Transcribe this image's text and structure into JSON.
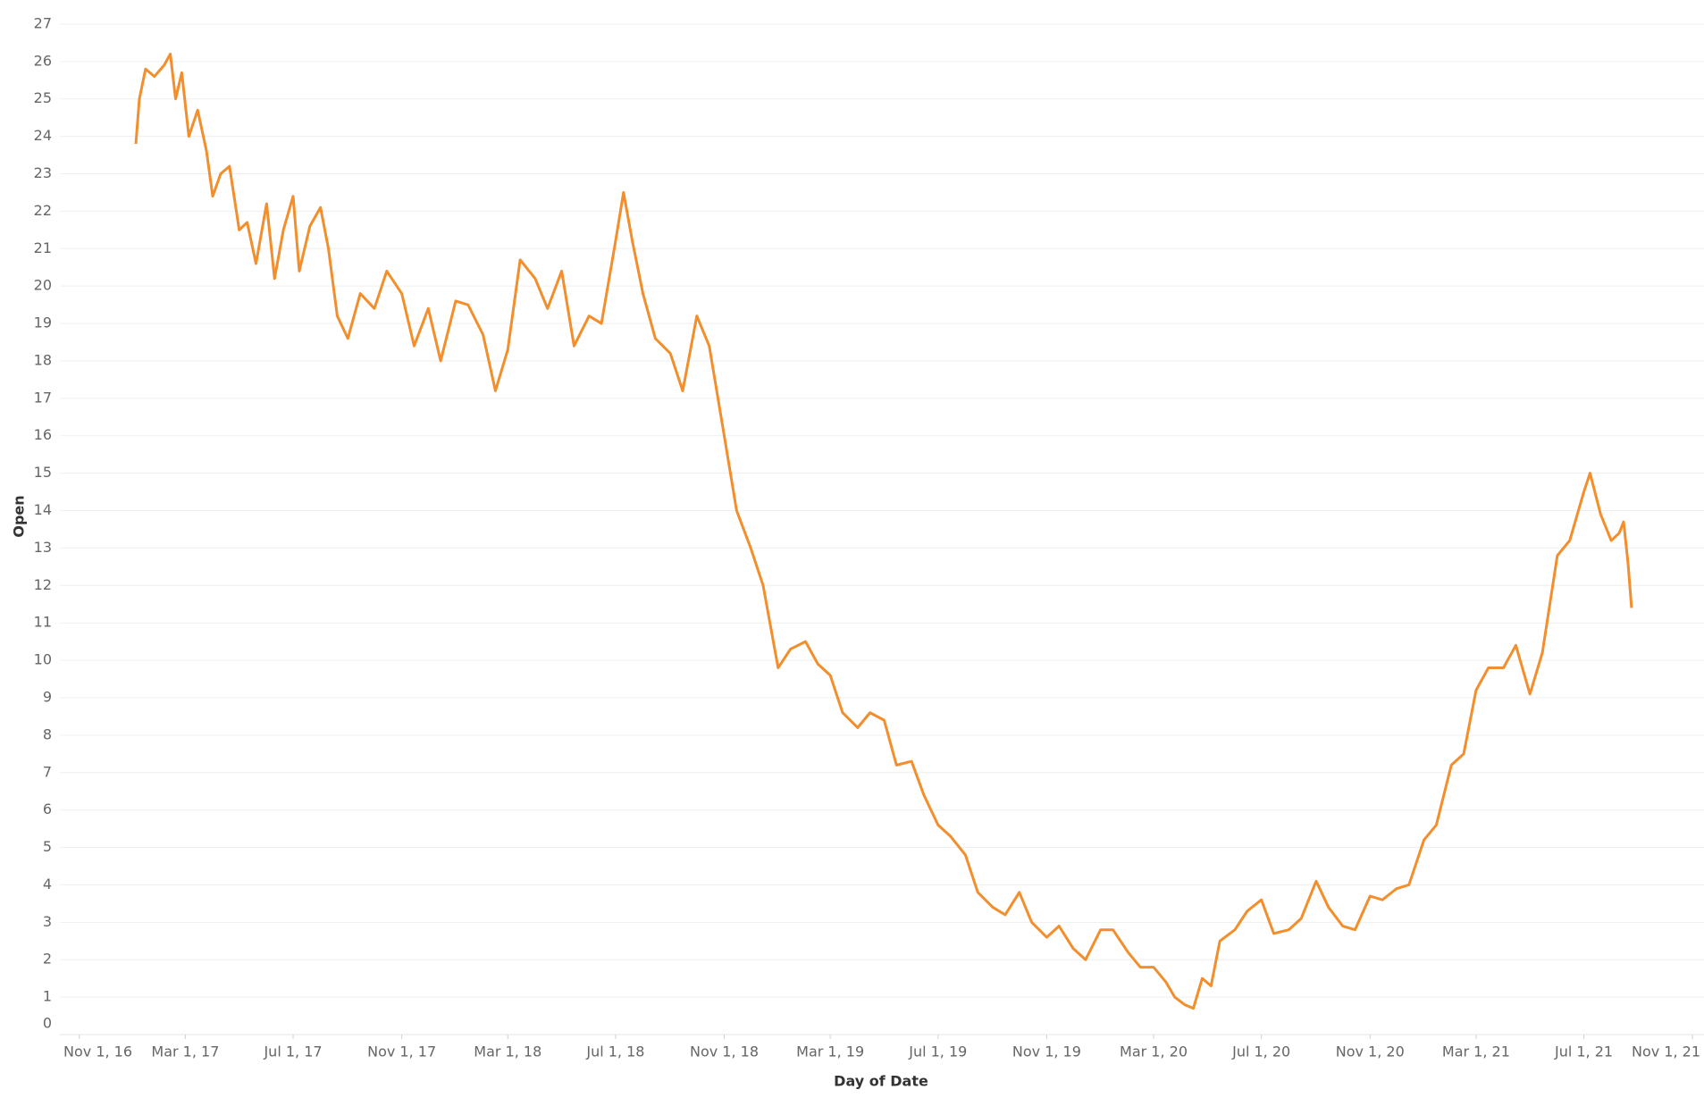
{
  "chart_data": {
    "type": "line",
    "x_label": "Day of Date",
    "y_label": "Open",
    "x": [
      "2017-01-04",
      "2017-01-08",
      "2017-01-15",
      "2017-01-25",
      "2017-02-05",
      "2017-02-12",
      "2017-02-18",
      "2017-02-25",
      "2017-03-05",
      "2017-03-15",
      "2017-03-25",
      "2017-04-01",
      "2017-04-10",
      "2017-04-20",
      "2017-05-01",
      "2017-05-10",
      "2017-05-20",
      "2017-06-01",
      "2017-06-10",
      "2017-06-20",
      "2017-07-01",
      "2017-07-08",
      "2017-07-20",
      "2017-08-01",
      "2017-08-10",
      "2017-08-20",
      "2017-09-01",
      "2017-09-15",
      "2017-10-01",
      "2017-10-15",
      "2017-11-01",
      "2017-11-15",
      "2017-12-01",
      "2017-12-15",
      "2018-01-01",
      "2018-01-15",
      "2018-02-01",
      "2018-02-15",
      "2018-03-01",
      "2018-03-15",
      "2018-04-01",
      "2018-04-15",
      "2018-05-01",
      "2018-05-15",
      "2018-06-01",
      "2018-06-15",
      "2018-07-01",
      "2018-07-10",
      "2018-07-20",
      "2018-08-01",
      "2018-08-15",
      "2018-09-01",
      "2018-09-15",
      "2018-10-01",
      "2018-10-15",
      "2018-11-01",
      "2018-11-15",
      "2018-12-01",
      "2018-12-15",
      "2019-01-01",
      "2019-01-15",
      "2019-02-01",
      "2019-02-15",
      "2019-03-01",
      "2019-03-15",
      "2019-04-01",
      "2019-04-15",
      "2019-05-01",
      "2019-05-15",
      "2019-06-01",
      "2019-06-15",
      "2019-07-01",
      "2019-07-15",
      "2019-08-01",
      "2019-08-15",
      "2019-09-01",
      "2019-09-15",
      "2019-10-01",
      "2019-10-15",
      "2019-11-01",
      "2019-11-15",
      "2019-12-01",
      "2019-12-15",
      "2020-01-01",
      "2020-01-15",
      "2020-02-01",
      "2020-02-15",
      "2020-03-01",
      "2020-03-15",
      "2020-03-25",
      "2020-04-05",
      "2020-04-15",
      "2020-04-25",
      "2020-05-05",
      "2020-05-15",
      "2020-06-01",
      "2020-06-15",
      "2020-07-01",
      "2020-07-15",
      "2020-08-01",
      "2020-08-15",
      "2020-09-01",
      "2020-09-15",
      "2020-10-01",
      "2020-10-15",
      "2020-11-01",
      "2020-11-15",
      "2020-12-01",
      "2020-12-15",
      "2021-01-01",
      "2021-01-15",
      "2021-02-01",
      "2021-02-15",
      "2021-03-01",
      "2021-03-15",
      "2021-04-01",
      "2021-04-15",
      "2021-05-01",
      "2021-05-15",
      "2021-06-01",
      "2021-06-15",
      "2021-07-01",
      "2021-07-08",
      "2021-07-20",
      "2021-08-01",
      "2021-08-10",
      "2021-08-15",
      "2021-08-20",
      "2021-08-24"
    ],
    "series": [
      {
        "name": "Open",
        "color": "#f28e2b",
        "values": [
          23.8,
          25.0,
          25.8,
          25.6,
          25.9,
          26.2,
          25.0,
          25.7,
          24.0,
          24.7,
          23.6,
          22.4,
          23.0,
          23.2,
          21.5,
          21.7,
          20.6,
          22.2,
          20.2,
          21.5,
          22.4,
          20.4,
          21.6,
          22.1,
          21.0,
          19.2,
          18.6,
          19.8,
          19.4,
          20.4,
          19.8,
          18.4,
          19.4,
          18.0,
          19.6,
          19.5,
          18.7,
          17.2,
          18.3,
          20.7,
          20.2,
          19.4,
          20.4,
          18.4,
          19.2,
          19.0,
          21.2,
          22.5,
          21.2,
          19.8,
          18.6,
          18.2,
          17.2,
          19.2,
          18.4,
          16.0,
          14.0,
          13.0,
          12.0,
          9.8,
          10.3,
          10.5,
          9.9,
          9.6,
          8.6,
          8.2,
          8.6,
          8.4,
          7.2,
          7.3,
          6.4,
          5.6,
          5.3,
          4.8,
          3.8,
          3.4,
          3.2,
          3.8,
          3.0,
          2.6,
          2.9,
          2.3,
          2.0,
          2.8,
          2.8,
          2.2,
          1.8,
          1.8,
          1.4,
          1.0,
          0.8,
          0.7,
          1.5,
          1.3,
          2.5,
          2.8,
          3.3,
          3.6,
          2.7,
          2.8,
          3.1,
          4.1,
          3.4,
          2.9,
          2.8,
          3.7,
          3.6,
          3.9,
          4.0,
          5.2,
          5.6,
          7.2,
          7.5,
          9.2,
          9.8,
          9.8,
          10.4,
          9.1,
          10.2,
          12.8,
          13.2,
          14.5,
          15.0,
          13.9,
          13.2,
          13.4,
          13.7,
          12.6,
          11.4
        ]
      }
    ],
    "xlim": [
      "2016-10-10",
      "2021-11-14"
    ],
    "xticks": [
      {
        "value": "2016-11-01",
        "label": "Nov 1, 16"
      },
      {
        "value": "2017-03-01",
        "label": "Mar 1, 17"
      },
      {
        "value": "2017-07-01",
        "label": "Jul 1, 17"
      },
      {
        "value": "2017-11-01",
        "label": "Nov 1, 17"
      },
      {
        "value": "2018-03-01",
        "label": "Mar 1, 18"
      },
      {
        "value": "2018-07-01",
        "label": "Jul 1, 18"
      },
      {
        "value": "2018-11-01",
        "label": "Nov 1, 18"
      },
      {
        "value": "2019-03-01",
        "label": "Mar 1, 19"
      },
      {
        "value": "2019-07-01",
        "label": "Jul 1, 19"
      },
      {
        "value": "2019-11-01",
        "label": "Nov 1, 19"
      },
      {
        "value": "2020-03-01",
        "label": "Mar 1, 20"
      },
      {
        "value": "2020-07-01",
        "label": "Jul 1, 20"
      },
      {
        "value": "2020-11-01",
        "label": "Nov 1, 20"
      },
      {
        "value": "2021-03-01",
        "label": "Mar 1, 21"
      },
      {
        "value": "2021-07-01",
        "label": "Jul 1, 21"
      },
      {
        "value": "2021-11-01",
        "label": "Nov 1, 21"
      }
    ],
    "ylim": [
      0,
      27.5
    ],
    "yticks": [
      0,
      1,
      2,
      3,
      4,
      5,
      6,
      7,
      8,
      9,
      10,
      11,
      12,
      13,
      14,
      15,
      16,
      17,
      18,
      19,
      20,
      21,
      22,
      23,
      24,
      25,
      26,
      27
    ],
    "grid": true
  }
}
